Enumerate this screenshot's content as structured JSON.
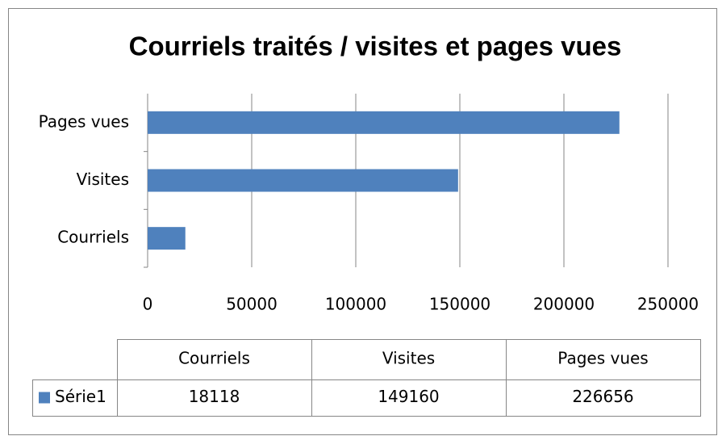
{
  "chart_data": {
    "type": "bar",
    "orientation": "horizontal",
    "title": "Courriels traités / visites et pages vues",
    "categories": [
      "Courriels",
      "Visites",
      "Pages vues"
    ],
    "series": [
      {
        "name": "Série1",
        "color": "#4f81bd",
        "values": [
          18118,
          149160,
          226656
        ]
      }
    ],
    "xlim": [
      0,
      250000
    ],
    "xticks": [
      0,
      50000,
      100000,
      150000,
      200000,
      250000
    ],
    "grid": true,
    "data_table": true
  }
}
